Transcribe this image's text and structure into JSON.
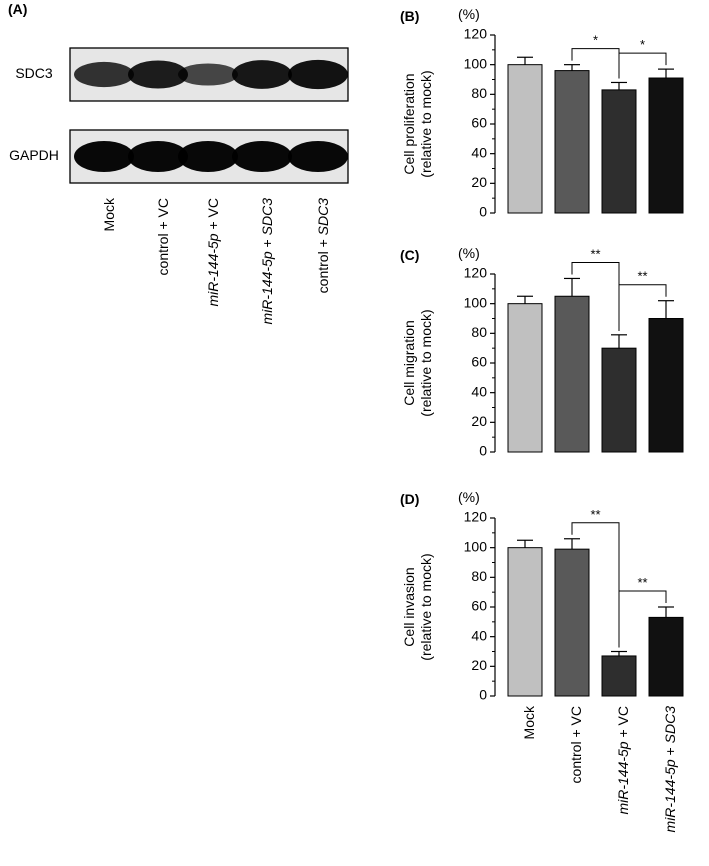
{
  "panels": {
    "A": {
      "label": "(A)",
      "bands": [
        {
          "name": "SDC3",
          "intensities": [
            0.62,
            0.78,
            0.45,
            0.82,
            0.85
          ]
        },
        {
          "name": "GAPDH",
          "intensities": [
            0.95,
            0.95,
            0.95,
            0.95,
            0.95
          ]
        }
      ],
      "lanes": [
        [
          {
            "t": "Mock",
            "i": false
          }
        ],
        [
          {
            "t": "control + VC",
            "i": false
          }
        ],
        [
          {
            "t": "miR-144-5p",
            "i": true
          },
          {
            "t": " + VC",
            "i": false
          }
        ],
        [
          {
            "t": "miR-144-5p",
            "i": true
          },
          {
            "t": " + ",
            "i": false
          },
          {
            "t": "SDC3",
            "i": true
          }
        ],
        [
          {
            "t": "control + ",
            "i": false
          },
          {
            "t": "SDC3",
            "i": true
          }
        ]
      ]
    }
  },
  "x_labels": [
    [
      {
        "t": "Mock",
        "i": false
      }
    ],
    [
      {
        "t": "control + VC",
        "i": false
      }
    ],
    [
      {
        "t": "miR-144-5p",
        "i": true
      },
      {
        "t": " + VC",
        "i": false
      }
    ],
    [
      {
        "t": "miR-144-5p",
        "i": true
      },
      {
        "t": " + ",
        "i": false
      },
      {
        "t": "SDC3",
        "i": true
      }
    ]
  ],
  "colors": {
    "bars": [
      "#c0c0c0",
      "#595959",
      "#2e2e2e",
      "#111111"
    ],
    "blot_bg": "#e6e6e6",
    "band": "#000000"
  },
  "chart_data": [
    {
      "panel": "(B)",
      "type": "bar",
      "unit": "(%)",
      "ylabel": [
        "Cell proliferation",
        "(relative to mock)"
      ],
      "ylim": [
        0,
        120
      ],
      "yticks": [
        0,
        20,
        40,
        60,
        80,
        100,
        120
      ],
      "values": [
        100,
        96,
        83,
        91
      ],
      "errors": [
        5,
        4,
        5,
        6
      ],
      "significance": [
        {
          "from": 1,
          "to": 2,
          "label": "*"
        },
        {
          "from": 2,
          "to": 3,
          "label": "*"
        }
      ]
    },
    {
      "panel": "(C)",
      "type": "bar",
      "unit": "(%)",
      "ylabel": [
        "Cell migration",
        "(relative to mock)"
      ],
      "ylim": [
        0,
        120
      ],
      "yticks": [
        0,
        20,
        40,
        60,
        80,
        100,
        120
      ],
      "values": [
        100,
        105,
        70,
        90
      ],
      "errors": [
        5,
        12,
        9,
        12
      ],
      "significance": [
        {
          "from": 1,
          "to": 2,
          "label": "**"
        },
        {
          "from": 2,
          "to": 3,
          "label": "**"
        }
      ]
    },
    {
      "panel": "(D)",
      "type": "bar",
      "unit": "(%)",
      "ylabel": [
        "Cell invasion",
        "(relative to mock)"
      ],
      "ylim": [
        0,
        120
      ],
      "yticks": [
        0,
        20,
        40,
        60,
        80,
        100,
        120
      ],
      "values": [
        100,
        99,
        27,
        53
      ],
      "errors": [
        5,
        7,
        3,
        7
      ],
      "significance": [
        {
          "from": 1,
          "to": 2,
          "label": "**"
        },
        {
          "from": 2,
          "to": 3,
          "label": "**"
        }
      ]
    }
  ]
}
